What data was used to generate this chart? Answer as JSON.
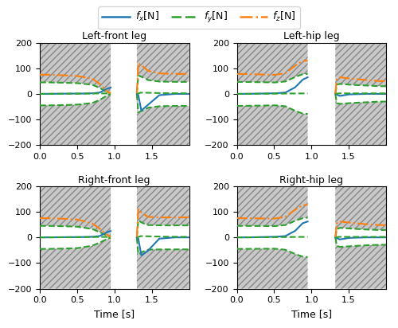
{
  "titles": [
    "Left-front leg",
    "Left-hip leg",
    "Right-front leg",
    "Right-hip leg"
  ],
  "fx_color": "#1f77b4",
  "fy_color": "#2ca02c",
  "fz_color": "#ff7f0e",
  "ylim": [
    -200,
    200
  ],
  "xlim": [
    0.0,
    2.0
  ],
  "yticks": [
    -200,
    -100,
    0,
    100,
    200
  ],
  "xticks": [
    0.0,
    0.5,
    1.0,
    1.5
  ],
  "xlabel": "Time [s]",
  "figsize": [
    5.0,
    4.12
  ],
  "dpi": 100,
  "legs": [
    {
      "title": "Left-front leg",
      "flight_start": 0.95,
      "flight_end": 1.3,
      "mu": 0.6,
      "fz_contact_t": [
        0.0,
        0.1,
        0.3,
        0.5,
        0.7,
        0.8,
        0.9,
        0.95
      ],
      "fz_contact_v": [
        75,
        75,
        73,
        70,
        60,
        40,
        10,
        2
      ],
      "fx_contact_t": [
        0.0,
        0.1,
        0.3,
        0.5,
        0.7,
        0.8,
        0.9,
        0.95
      ],
      "fx_contact_v": [
        0,
        0,
        1,
        1,
        2,
        5,
        20,
        25
      ],
      "fy_contact_t": [
        0.0,
        0.95
      ],
      "fy_contact_v": [
        0,
        2
      ],
      "fz_land_t": [
        1.3,
        1.32,
        1.37,
        1.45,
        1.6,
        1.8,
        2.0
      ],
      "fz_land_v": [
        0,
        120,
        110,
        90,
        80,
        78,
        78
      ],
      "fx_land_t": [
        1.3,
        1.32,
        1.36,
        1.42,
        1.6,
        1.8,
        2.0
      ],
      "fx_land_v": [
        0,
        -5,
        -65,
        -50,
        -5,
        0,
        0
      ],
      "fy_land_t": [
        1.3,
        1.35,
        1.6,
        2.0
      ],
      "fy_land_v": [
        0,
        5,
        3,
        2
      ]
    },
    {
      "title": "Left-hip leg",
      "flight_start": 0.95,
      "flight_end": 1.32,
      "mu": 0.6,
      "fz_contact_t": [
        0.0,
        0.1,
        0.3,
        0.5,
        0.65,
        0.78,
        0.88,
        0.95
      ],
      "fz_contact_v": [
        78,
        78,
        76,
        74,
        80,
        110,
        128,
        130
      ],
      "fx_contact_t": [
        0.0,
        0.1,
        0.3,
        0.5,
        0.65,
        0.78,
        0.88,
        0.95
      ],
      "fx_contact_v": [
        0,
        0,
        1,
        2,
        5,
        25,
        55,
        65
      ],
      "fy_contact_t": [
        0.0,
        0.95
      ],
      "fy_contact_v": [
        0,
        2
      ],
      "fz_land_t": [
        1.32,
        1.34,
        1.38,
        1.5,
        1.7,
        1.9,
        2.0
      ],
      "fz_land_v": [
        0,
        60,
        65,
        60,
        55,
        50,
        50
      ],
      "fx_land_t": [
        1.32,
        1.34,
        1.38,
        1.5,
        1.7,
        1.9,
        2.0
      ],
      "fx_land_v": [
        0,
        -3,
        -8,
        -2,
        0,
        0,
        0
      ],
      "fy_land_t": [
        1.32,
        1.36,
        1.7,
        2.0
      ],
      "fy_land_v": [
        0,
        2,
        2,
        2
      ]
    },
    {
      "title": "Right-front leg",
      "flight_start": 0.95,
      "flight_end": 1.3,
      "mu": 0.6,
      "fz_contact_t": [
        0.0,
        0.1,
        0.3,
        0.5,
        0.7,
        0.8,
        0.9,
        0.95
      ],
      "fz_contact_v": [
        75,
        75,
        73,
        70,
        55,
        35,
        10,
        2
      ],
      "fx_contact_t": [
        0.0,
        0.1,
        0.3,
        0.5,
        0.7,
        0.8,
        0.9,
        0.95
      ],
      "fx_contact_v": [
        0,
        0,
        1,
        1,
        2,
        5,
        20,
        25
      ],
      "fy_contact_t": [
        0.0,
        0.95
      ],
      "fy_contact_v": [
        0,
        2
      ],
      "fz_land_t": [
        1.3,
        1.32,
        1.37,
        1.45,
        1.6,
        1.8,
        2.0
      ],
      "fz_land_v": [
        0,
        110,
        95,
        80,
        78,
        78,
        78
      ],
      "fx_land_t": [
        1.3,
        1.32,
        1.36,
        1.44,
        1.6,
        1.8,
        2.0
      ],
      "fx_land_v": [
        0,
        -5,
        -70,
        -55,
        -5,
        0,
        0
      ],
      "fy_land_t": [
        1.3,
        1.35,
        1.6,
        2.0
      ],
      "fy_land_v": [
        0,
        5,
        3,
        2
      ]
    },
    {
      "title": "Right-hip leg",
      "flight_start": 0.95,
      "flight_end": 1.32,
      "mu": 0.6,
      "fz_contact_t": [
        0.0,
        0.1,
        0.3,
        0.5,
        0.65,
        0.78,
        0.88,
        0.95
      ],
      "fz_contact_v": [
        75,
        75,
        74,
        73,
        80,
        108,
        125,
        128
      ],
      "fx_contact_t": [
        0.0,
        0.1,
        0.3,
        0.5,
        0.65,
        0.78,
        0.88,
        0.95
      ],
      "fx_contact_v": [
        0,
        0,
        1,
        2,
        5,
        25,
        55,
        62
      ],
      "fy_contact_t": [
        0.0,
        0.95
      ],
      "fy_contact_v": [
        0,
        2
      ],
      "fz_land_t": [
        1.32,
        1.34,
        1.38,
        1.5,
        1.7,
        1.9,
        2.0
      ],
      "fz_land_v": [
        0,
        55,
        62,
        58,
        52,
        48,
        48
      ],
      "fx_land_t": [
        1.32,
        1.34,
        1.38,
        1.5,
        1.7,
        1.9,
        2.0
      ],
      "fx_land_v": [
        0,
        -3,
        -8,
        -2,
        0,
        0,
        0
      ],
      "fy_land_t": [
        1.32,
        1.36,
        1.7,
        2.0
      ],
      "fy_land_v": [
        0,
        2,
        2,
        2
      ]
    }
  ]
}
